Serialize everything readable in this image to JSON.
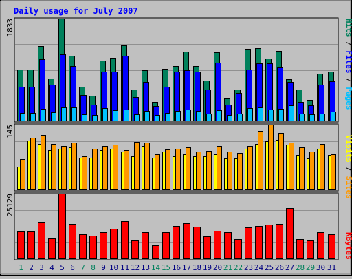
{
  "chart_data": [
    {
      "type": "bar",
      "title": "Daily usage for July 2007",
      "ymax_label": "1833",
      "ylim": [
        0,
        1833
      ],
      "right_label": {
        "parts": [
          "Pages",
          "Files",
          "Hits"
        ],
        "separator": " / "
      },
      "colors": {
        "Hits": "#00805c",
        "Files": "#0000ff",
        "Pages": "#00c0ff"
      },
      "categories": [
        "1",
        "2",
        "3",
        "4",
        "5",
        "6",
        "7",
        "8",
        "9",
        "10",
        "11",
        "12",
        "13",
        "14",
        "15",
        "16",
        "17",
        "18",
        "19",
        "20",
        "21",
        "22",
        "23",
        "24",
        "25",
        "26",
        "27",
        "28",
        "29",
        "30",
        "31"
      ],
      "weekend_days": [
        "1",
        "7",
        "8",
        "14",
        "15",
        "21",
        "22",
        "28",
        "29"
      ],
      "series": [
        {
          "name": "Hits",
          "values": [
            920,
            920,
            1340,
            760,
            1833,
            1170,
            620,
            460,
            1080,
            1130,
            1350,
            570,
            910,
            350,
            930,
            990,
            1240,
            990,
            720,
            1230,
            420,
            570,
            1290,
            1310,
            1120,
            1260,
            750,
            560,
            380,
            850,
            890
          ]
        },
        {
          "name": "Files",
          "values": [
            620,
            610,
            1110,
            650,
            1190,
            980,
            470,
            290,
            890,
            880,
            1170,
            430,
            700,
            270,
            610,
            880,
            910,
            880,
            570,
            1040,
            300,
            510,
            920,
            1030,
            1030,
            970,
            700,
            340,
            280,
            650,
            710
          ]
        },
        {
          "name": "Pages",
          "values": [
            150,
            150,
            220,
            160,
            250,
            240,
            120,
            110,
            230,
            200,
            210,
            120,
            180,
            110,
            150,
            190,
            210,
            180,
            140,
            200,
            110,
            130,
            230,
            250,
            210,
            220,
            280,
            130,
            120,
            140,
            170
          ]
        }
      ]
    },
    {
      "type": "bar",
      "ymax_label": "145",
      "ylim": [
        0,
        145
      ],
      "right_label": {
        "parts": [
          "Sites",
          "Visits"
        ],
        "separator": " / "
      },
      "colors": {
        "Visits": "#ffff00",
        "Sites": "#ff9900"
      },
      "categories": [
        "1",
        "2",
        "3",
        "4",
        "5",
        "6",
        "7",
        "8",
        "9",
        "10",
        "11",
        "12",
        "13",
        "14",
        "15",
        "16",
        "17",
        "18",
        "19",
        "20",
        "21",
        "22",
        "23",
        "24",
        "25",
        "26",
        "27",
        "28",
        "29",
        "30",
        "31"
      ],
      "series": [
        {
          "name": "Visits",
          "values": [
            52,
            110,
            102,
            88,
            92,
            95,
            72,
            72,
            88,
            92,
            85,
            75,
            98,
            72,
            85,
            75,
            80,
            75,
            75,
            80,
            70,
            70,
            92,
            102,
            108,
            112,
            100,
            78,
            70,
            92,
            78
          ]
        },
        {
          "name": "Sites",
          "values": [
            68,
            116,
            122,
            102,
            98,
            106,
            75,
            92,
            98,
            100,
            88,
            107,
            105,
            80,
            90,
            92,
            95,
            85,
            87,
            98,
            85,
            82,
            98,
            132,
            145,
            127,
            105,
            95,
            85,
            103,
            80
          ]
        }
      ]
    },
    {
      "type": "bar",
      "ymax_label": "25129",
      "ylim": [
        0,
        25129
      ],
      "right_label": {
        "parts": [
          "KBytes"
        ],
        "separator": ""
      },
      "colors": {
        "KBytes": "#ff0000"
      },
      "categories": [
        "1",
        "2",
        "3",
        "4",
        "5",
        "6",
        "7",
        "8",
        "9",
        "10",
        "11",
        "12",
        "13",
        "14",
        "15",
        "16",
        "17",
        "18",
        "19",
        "20",
        "21",
        "22",
        "23",
        "24",
        "25",
        "26",
        "27",
        "28",
        "29",
        "30",
        "31"
      ],
      "series": [
        {
          "name": "KBytes",
          "values": [
            10600,
            10600,
            14200,
            8000,
            25129,
            13500,
            9500,
            9100,
            10400,
            11700,
            14600,
            7100,
            10400,
            5200,
            10400,
            12700,
            13700,
            12400,
            8600,
            10800,
            10400,
            7800,
            12100,
            12700,
            13200,
            13500,
            19700,
            7800,
            7200,
            10400,
            9600
          ]
        }
      ]
    }
  ]
}
